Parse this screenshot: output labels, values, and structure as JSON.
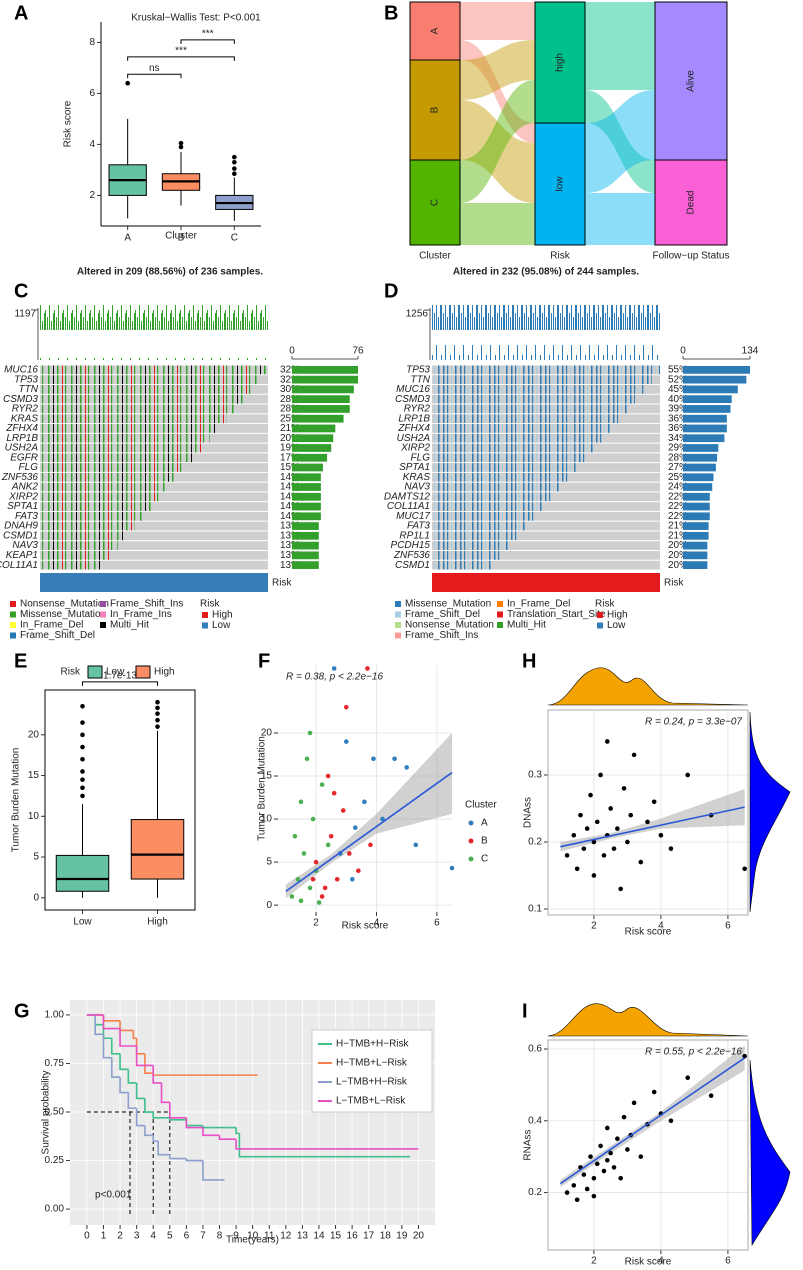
{
  "panel_labels": [
    "A",
    "B",
    "C",
    "D",
    "E",
    "F",
    "H",
    "G",
    "I"
  ],
  "chart_data": [
    {
      "type": "box",
      "title": "Kruskal−Wallis Test: P<0.001",
      "xlabel": "Cluster",
      "ylabel": "Risk score",
      "categories": [
        "A",
        "B",
        "C"
      ],
      "colors": [
        "#66c2a5",
        "#fc8d62",
        "#8da0cb"
      ],
      "values": [
        {
          "min": 1.1,
          "q1": 2.0,
          "median": 2.6,
          "q3": 3.2,
          "max": 5.0
        },
        {
          "min": 1.6,
          "q1": 2.2,
          "median": 2.55,
          "q3": 2.85,
          "max": 3.7
        },
        {
          "min": 1.0,
          "q1": 1.45,
          "median": 1.7,
          "q3": 2.0,
          "max": 2.7
        }
      ],
      "outliers": [
        [
          6.4
        ],
        [
          3.9,
          4.05
        ],
        [
          2.85,
          3.05,
          3.3,
          3.5
        ]
      ],
      "ylim": [
        0.8,
        8.8
      ],
      "yticks": [
        2,
        4,
        6,
        8
      ],
      "comparisons": [
        {
          "from": "A",
          "to": "B",
          "y": 6.75,
          "label": "ns"
        },
        {
          "from": "A",
          "to": "C",
          "y": 7.43,
          "label": "***"
        },
        {
          "from": "B",
          "to": "C",
          "y": 8.1,
          "label": "***"
        }
      ]
    },
    {
      "type": "sankey",
      "columns": [
        {
          "label": "Cluster",
          "nodes": [
            "A",
            "B",
            "C"
          ]
        },
        {
          "label": "Risk",
          "nodes": [
            "high",
            "low"
          ]
        },
        {
          "label": "Follow−up Status",
          "nodes": [
            "Alive",
            "Dead"
          ]
        }
      ]
    },
    {
      "type": "oncoplot",
      "title": "Altered in 209 (88.56%) of 236 samples.",
      "top_ticks": [
        1197
      ],
      "side_ticks": [
        0,
        76
      ],
      "genes": [
        "MUC16",
        "TP53",
        "TTN",
        "CSMD3",
        "RYR2",
        "KRAS",
        "ZFHX4",
        "LRP1B",
        "USH2A",
        "EGFR",
        "FLG",
        "ZNF536",
        "ANK2",
        "XIRP2",
        "SPTA1",
        "FAT3",
        "DNAH9",
        "CSMD1",
        "NAV3",
        "KEAP1",
        "COL11A1"
      ],
      "values": [
        32,
        32,
        30,
        28,
        28,
        25,
        21,
        20,
        19,
        17,
        15,
        14,
        14,
        14,
        14,
        14,
        13,
        13,
        13,
        13,
        13
      ],
      "value_labels": [
        "32%",
        "32%",
        "30%",
        "28%",
        "28%",
        "25%",
        "21%",
        "20%",
        "19%",
        "17%",
        "15%",
        "14%",
        "14%",
        "14%",
        "14%",
        "14%",
        "13%",
        "13%",
        "13%",
        "13%",
        "13%"
      ],
      "side_color": "#33a02c",
      "risk_bar_color": "#377eb8",
      "risk_label": "Risk",
      "legend": [
        {
          "name": "Nonsense_Mutation",
          "color": "#e41a1c"
        },
        {
          "name": "Missense_Mutation",
          "color": "#33a02c"
        },
        {
          "name": "In_Frame_Del",
          "color": "#ffff33"
        },
        {
          "name": "Frame_Shift_Del",
          "color": "#1f78b4"
        },
        {
          "name": "Frame_Shift_Ins",
          "color": "#984ea3"
        },
        {
          "name": "In_Frame_Ins",
          "color": "#f781bf"
        },
        {
          "name": "Multi_Hit",
          "color": "#000000"
        }
      ],
      "risk_legend": {
        "title": "Risk",
        "items": [
          {
            "name": "High",
            "color": "#e41a1c"
          },
          {
            "name": "Low",
            "color": "#377eb8"
          }
        ]
      }
    },
    {
      "type": "oncoplot",
      "title": "Altered in 232 (95.08%) of 244 samples.",
      "top_ticks": [
        1256
      ],
      "side_ticks": [
        0,
        134
      ],
      "genes": [
        "TP53",
        "TTN",
        "MUC16",
        "CSMD3",
        "RYR2",
        "LRP1B",
        "ZFHX4",
        "USH2A",
        "XIRP2",
        "FLG",
        "SPTA1",
        "KRAS",
        "NAV3",
        "DAMTS12",
        "COL11A1",
        "MUC17",
        "FAT3",
        "RP1L1",
        "PCDH15",
        "ZNF536",
        "CSMD1"
      ],
      "values": [
        55,
        52,
        45,
        40,
        39,
        36,
        36,
        34,
        29,
        28,
        27,
        25,
        24,
        22,
        22,
        22,
        21,
        21,
        20,
        20,
        20
      ],
      "value_labels": [
        "55%",
        "52%",
        "45%",
        "40%",
        "39%",
        "36%",
        "36%",
        "34%",
        "29%",
        "28%",
        "27%",
        "25%",
        "24%",
        "22%",
        "22%",
        "22%",
        "21%",
        "21%",
        "20%",
        "20%",
        "20%"
      ],
      "side_color": "#2c7bb6",
      "risk_bar_color": "#e41a1c",
      "risk_label": "Risk",
      "legend": [
        {
          "name": "Missense_Mutation",
          "color": "#2c7bb6"
        },
        {
          "name": "Frame_Shift_Del",
          "color": "#a6cee3"
        },
        {
          "name": "Nonsense_Mutation",
          "color": "#b2df8a"
        },
        {
          "name": "Frame_Shift_Ins",
          "color": "#fb9a99"
        },
        {
          "name": "In_Frame_Del",
          "color": "#ff7f00"
        },
        {
          "name": "Translation_Start_Site",
          "color": "#e31a1c"
        },
        {
          "name": "Multi_Hit",
          "color": "#33a02c"
        }
      ],
      "risk_legend": {
        "title": "Risk",
        "items": [
          {
            "name": "High",
            "color": "#e41a1c"
          },
          {
            "name": "Low",
            "color": "#377eb8"
          }
        ]
      }
    },
    {
      "type": "box",
      "ylabel": "Tumor Burden Mutation",
      "legend_title": "Risk",
      "categories": [
        "Low",
        "High"
      ],
      "colors": [
        "#66c2a5",
        "#fc8d62"
      ],
      "values": [
        {
          "min": 0,
          "q1": 0.8,
          "median": 2.3,
          "q3": 5.2,
          "max": 11.5
        },
        {
          "min": 0,
          "q1": 2.3,
          "median": 5.3,
          "q3": 9.6,
          "max": 20.5
        }
      ],
      "outliers": [
        [
          12.5,
          13.5,
          14.5,
          15.5,
          17,
          18.5,
          20,
          21.5,
          23.5
        ],
        [
          21,
          21.8,
          22.6,
          23.3,
          24
        ]
      ],
      "ylim": [
        -1.5,
        25.5
      ],
      "yticks": [
        0,
        5,
        10,
        15,
        20
      ],
      "comparisons": [
        {
          "from": "Low",
          "to": "High",
          "y": 26.5,
          "label": "1.7e-13"
        }
      ]
    },
    {
      "type": "scatter",
      "xlabel": "Risk score",
      "ylabel": "Tumor Burden Mutation",
      "annotation": "R = 0.38, p < 2.2e−16",
      "legend_title": "Cluster",
      "xlim": [
        0.74,
        6.5
      ],
      "ylim": [
        -0.8,
        27.9
      ],
      "xticks": [
        2,
        4,
        6
      ],
      "yticks": [
        0,
        5,
        10,
        15,
        20
      ],
      "grid": true,
      "series": [
        {
          "name": "A",
          "color": "#2f7fc1",
          "x": [
            2.6,
            3.0,
            3.3,
            3.6,
            3.9,
            4.2,
            4.6,
            5.0,
            5.3,
            6.5,
            3.2,
            2.8
          ],
          "y": [
            27.5,
            19,
            9,
            12,
            17,
            10,
            17,
            16,
            7,
            4.3,
            3,
            6
          ]
        },
        {
          "name": "B",
          "color": "#e3272b",
          "x": [
            2.0,
            2.3,
            2.5,
            2.7,
            2.9,
            3.1,
            3.4,
            3.7,
            2.2,
            2.6,
            3.0,
            3.8,
            2.4,
            1.9
          ],
          "y": [
            5,
            2,
            8,
            3,
            11,
            6,
            4,
            27.5,
            1,
            13,
            23,
            7,
            15,
            3
          ]
        },
        {
          "name": "C",
          "color": "#4caf50",
          "x": [
            1.2,
            1.4,
            1.5,
            1.6,
            1.8,
            1.9,
            2.0,
            2.2,
            1.3,
            1.7,
            2.1,
            1.5,
            1.8,
            2.4
          ],
          "y": [
            1,
            3,
            0.5,
            6,
            2,
            10,
            4,
            14,
            8,
            17,
            0.3,
            12,
            20,
            7
          ]
        }
      ],
      "fit": {
        "x": [
          1,
          6.5
        ],
        "y": [
          1.6,
          15.4
        ]
      },
      "band": {
        "x": [
          1,
          2.5,
          4,
          6.5
        ],
        "lower": [
          0.8,
          4.9,
          8.3,
          10.6
        ],
        "upper": [
          2.4,
          5.9,
          10.6,
          20
        ]
      }
    },
    {
      "type": "scatter",
      "xlabel": "Risk score",
      "ylabel": "DNAss",
      "annotation": "R = 0.24, p = 3.3e−07",
      "xlim": [
        0.63,
        6.6
      ],
      "ylim": [
        0.091,
        0.397
      ],
      "xticks": [
        2,
        4,
        6
      ],
      "yticks": [
        0.1,
        0.2,
        0.3
      ],
      "grid": true,
      "series": [
        {
          "color": "#000000",
          "x": [
            1.2,
            1.4,
            1.5,
            1.6,
            1.7,
            1.8,
            1.9,
            2.0,
            2.0,
            2.1,
            2.2,
            2.3,
            2.4,
            2.4,
            2.5,
            2.6,
            2.7,
            2.8,
            2.9,
            3.0,
            3.1,
            3.2,
            3.4,
            3.6,
            3.8,
            4.0,
            4.3,
            4.8,
            5.5,
            6.5
          ],
          "y": [
            0.18,
            0.21,
            0.16,
            0.24,
            0.19,
            0.22,
            0.27,
            0.15,
            0.2,
            0.23,
            0.3,
            0.18,
            0.21,
            0.35,
            0.25,
            0.19,
            0.22,
            0.13,
            0.28,
            0.2,
            0.24,
            0.33,
            0.17,
            0.23,
            0.26,
            0.21,
            0.19,
            0.3,
            0.24,
            0.16
          ]
        }
      ],
      "fit": {
        "x": [
          1,
          6.5
        ],
        "y": [
          0.193,
          0.252
        ]
      },
      "band": {
        "x": [
          1,
          2.5,
          4,
          6.5
        ],
        "lower": [
          0.186,
          0.205,
          0.22,
          0.225
        ],
        "upper": [
          0.2,
          0.213,
          0.235,
          0.279
        ]
      }
    },
    {
      "type": "survival",
      "xlabel": "Time(years)",
      "ylabel": "Survival probability",
      "annotation": "p<0.001",
      "background": "#ebebeb",
      "grid": true,
      "xlim": [
        -1.02,
        21
      ],
      "ylim": [
        -0.082,
        1.077
      ],
      "xticks": [
        0,
        1,
        2,
        3,
        4,
        5,
        6,
        7,
        8,
        9,
        10,
        11,
        12,
        13,
        14,
        15,
        16,
        17,
        18,
        19,
        20
      ],
      "yticks": [
        {
          "value": 0,
          "label": "0.00"
        },
        0.25,
        {
          "value": 0.5,
          "label": "0.50"
        },
        0.75,
        {
          "value": 1,
          "label": "1.00"
        }
      ],
      "medians": {
        "x": [
          2.6,
          4.0,
          5.0
        ],
        "y": 0.5
      },
      "series": [
        {
          "name": "H−TMB+H−Risk",
          "color": "#3fbf8a",
          "x": [
            0,
            0.5,
            1,
            1.5,
            2,
            2.5,
            3,
            3.5,
            4,
            5,
            6,
            7,
            9,
            9.2,
            19.5
          ],
          "y": [
            1,
            0.95,
            0.88,
            0.8,
            0.72,
            0.65,
            0.57,
            0.5,
            0.47,
            0.46,
            0.43,
            0.42,
            0.39,
            0.27,
            0.27
          ]
        },
        {
          "name": "H−TMB+L−Risk",
          "color": "#f8804b",
          "x": [
            0,
            1,
            2,
            2.8,
            3,
            3.5,
            4,
            10.3
          ],
          "y": [
            1,
            0.97,
            0.92,
            0.88,
            0.8,
            0.7,
            0.69,
            0.69
          ]
        },
        {
          "name": "L−TMB+H−Risk",
          "color": "#8c9fcd",
          "x": [
            0,
            0.5,
            1,
            1.5,
            2,
            2.5,
            3,
            3.5,
            4,
            4.3,
            5,
            6,
            7,
            8.3
          ],
          "y": [
            1,
            0.9,
            0.78,
            0.68,
            0.6,
            0.52,
            0.43,
            0.38,
            0.35,
            0.28,
            0.26,
            0.25,
            0.15,
            0.15
          ]
        },
        {
          "name": "L−TMB+L−Risk",
          "color": "#e94fc5",
          "x": [
            0,
            1,
            2,
            3,
            4,
            4.5,
            5,
            6,
            7,
            8,
            9,
            20
          ],
          "y": [
            1,
            0.93,
            0.84,
            0.74,
            0.65,
            0.55,
            0.47,
            0.42,
            0.38,
            0.36,
            0.31,
            0.31
          ]
        }
      ]
    },
    {
      "type": "scatter",
      "xlabel": "Risk score",
      "ylabel": "RNAss",
      "annotation": "R = 0.55, p < 2.2e−16",
      "xlim": [
        0.63,
        6.6
      ],
      "ylim": [
        0.04,
        0.625
      ],
      "xticks": [
        2,
        4,
        6
      ],
      "yticks": [
        0.2,
        0.4,
        0.6
      ],
      "grid": true,
      "series": [
        {
          "color": "#000000",
          "x": [
            1.2,
            1.4,
            1.5,
            1.6,
            1.7,
            1.8,
            1.9,
            2.0,
            2.0,
            2.1,
            2.2,
            2.3,
            2.4,
            2.4,
            2.5,
            2.6,
            2.7,
            2.8,
            2.9,
            3.0,
            3.1,
            3.2,
            3.4,
            3.6,
            3.8,
            4.0,
            4.3,
            4.8,
            5.5,
            6.5
          ],
          "y": [
            0.2,
            0.22,
            0.18,
            0.27,
            0.25,
            0.21,
            0.3,
            0.24,
            0.19,
            0.28,
            0.33,
            0.26,
            0.29,
            0.38,
            0.31,
            0.27,
            0.35,
            0.24,
            0.41,
            0.32,
            0.36,
            0.45,
            0.3,
            0.39,
            0.48,
            0.42,
            0.4,
            0.52,
            0.47,
            0.58
          ]
        }
      ],
      "fit": {
        "x": [
          1,
          6.5
        ],
        "y": [
          0.225,
          0.575
        ]
      },
      "band": {
        "x": [
          1,
          2.5,
          4,
          6.5
        ],
        "lower": [
          0.215,
          0.31,
          0.4,
          0.54
        ],
        "upper": [
          0.235,
          0.33,
          0.425,
          0.61
        ]
      }
    }
  ]
}
